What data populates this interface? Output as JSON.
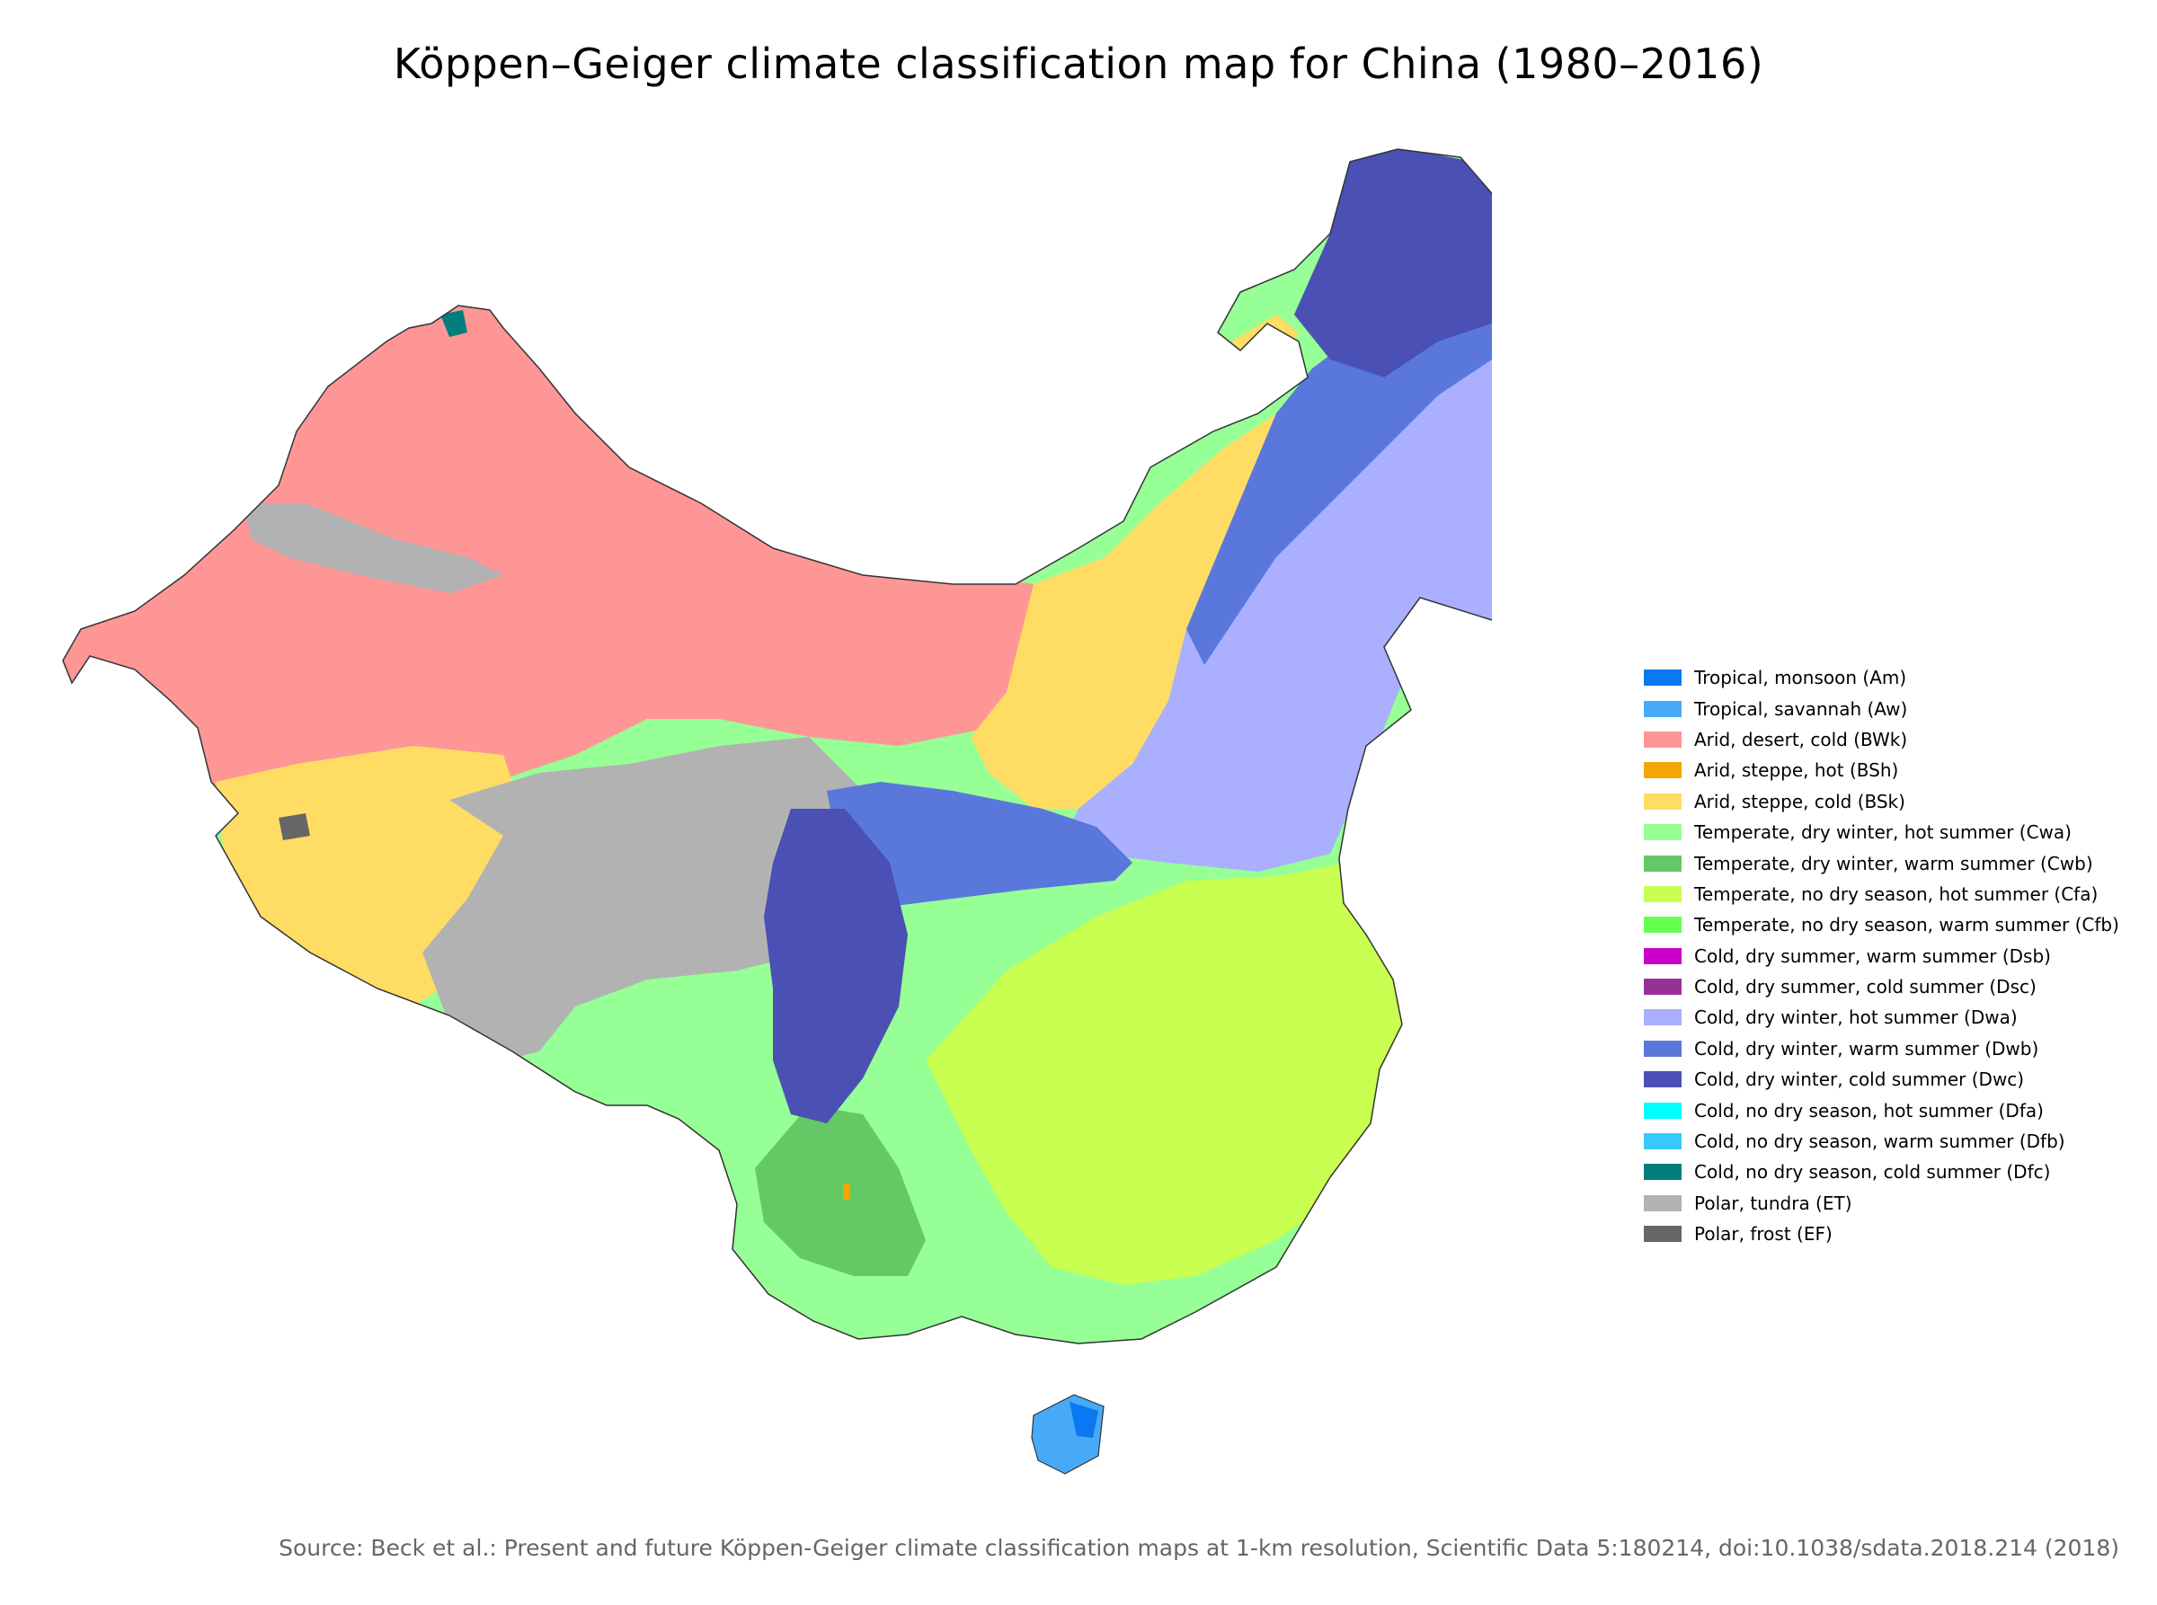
{
  "title": "Köppen–Geiger climate classification map for China (1980–2016)",
  "source": "Source: Beck et al.: Present and future Köppen-Geiger climate classification maps at 1-km resolution, Scientific Data 5:180214, doi:10.1038/sdata.2018.214 (2018)",
  "legend": [
    {
      "label": "Tropical, monsoon (Am)",
      "color": "#0a78f0"
    },
    {
      "label": "Tropical, savannah (Aw)",
      "color": "#46aaf8"
    },
    {
      "label": "Arid, desert, cold (BWk)",
      "color": "#fe9696"
    },
    {
      "label": "Arid, steppe, hot (BSh)",
      "color": "#f5a500"
    },
    {
      "label": "Arid, steppe, cold (BSk)",
      "color": "#ffdc64"
    },
    {
      "label": "Temperate, dry winter, hot summer (Cwa)",
      "color": "#96ff96"
    },
    {
      "label": "Temperate, dry winter, warm summer (Cwb)",
      "color": "#64c864"
    },
    {
      "label": "Temperate, no dry season, hot summer (Cfa)",
      "color": "#c8ff50"
    },
    {
      "label": "Temperate, no dry season, warm summer (Cfb)",
      "color": "#64ff50"
    },
    {
      "label": "Cold, dry summer, warm summer (Dsb)",
      "color": "#c800c8"
    },
    {
      "label": "Cold, dry summer, cold summer (Dsc)",
      "color": "#963296"
    },
    {
      "label": "Cold, dry winter, hot summer (Dwa)",
      "color": "#aaafff"
    },
    {
      "label": "Cold, dry winter, warm summer (Dwb)",
      "color": "#5a78dc"
    },
    {
      "label": "Cold, dry winter, cold summer (Dwc)",
      "color": "#4b50b4"
    },
    {
      "label": "Cold, no dry season, hot summer (Dfa)",
      "color": "#00ffff"
    },
    {
      "label": "Cold, no dry season, warm summer (Dfb)",
      "color": "#37c8ff"
    },
    {
      "label": "Cold, no dry season, cold summer (Dfc)",
      "color": "#007d7d"
    },
    {
      "label": "Polar, tundra (ET)",
      "color": "#b2b2b2"
    },
    {
      "label": "Polar, frost (EF)",
      "color": "#666666"
    }
  ]
}
